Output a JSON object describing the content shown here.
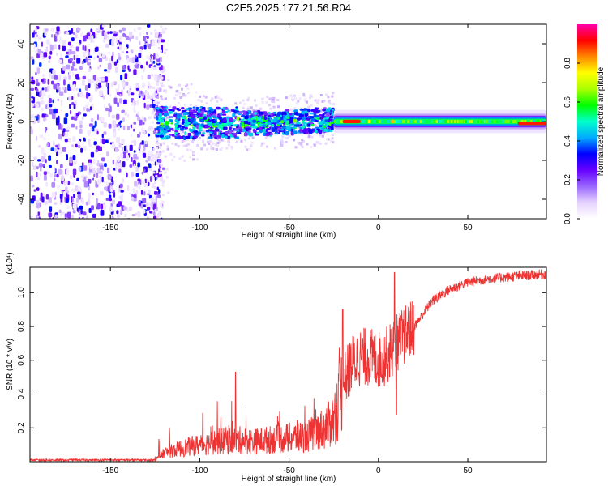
{
  "title": "C2E5.2025.177.21.56.R04",
  "chart_data": [
    {
      "type": "heatmap",
      "xlabel": "Height of straight line (km)",
      "ylabel": "Frequency (Hz)",
      "xlim": [
        -195,
        94
      ],
      "ylim": [
        -50,
        50
      ],
      "xticks": [
        -150,
        -100,
        -50,
        0,
        50
      ],
      "yticks": [
        -40,
        -20,
        0,
        20,
        40
      ],
      "colorbar": {
        "label": "Normalized spectral amplitude",
        "range": [
          0,
          1
        ],
        "ticks": [
          0.0,
          0.2,
          0.4,
          0.6,
          0.8
        ],
        "stops": [
          "#ffffff",
          "#e6d3ff",
          "#9966ff",
          "#6600ff",
          "#0000ff",
          "#00aaff",
          "#00ffcc",
          "#00ff00",
          "#aaff00",
          "#ffff00",
          "#ff8800",
          "#ff0000",
          "#ff00aa"
        ]
      },
      "regions": [
        {
          "x": [
            -195,
            -125
          ],
          "freq_range": [
            -50,
            50
          ],
          "amplitude": 0.15
        },
        {
          "x": [
            -125,
            -25
          ],
          "freq_center": 0,
          "freq_halfwidth": 8,
          "amplitude": 0.3
        },
        {
          "x": [
            -25,
            94
          ],
          "freq_center": 0,
          "freq_halfwidth": 2,
          "amplitude": 0.55
        },
        {
          "x": [
            -20,
            -10
          ],
          "freq_center": 0,
          "amplitude": 0.9
        },
        {
          "x": [
            78,
            94
          ],
          "freq_center": -1,
          "amplitude": 0.9
        }
      ],
      "grid": false
    },
    {
      "type": "line",
      "xlabel": "Height of straight line (km)",
      "ylabel": "SNR (10 * v/v)",
      "y_multiplier": "(x10⁴)",
      "xlim": [
        -195,
        94
      ],
      "ylim": [
        0,
        1.15
      ],
      "xticks": [
        -150,
        -100,
        -50,
        0,
        50
      ],
      "yticks": [
        0.2,
        0.4,
        0.6,
        0.8,
        1.0
      ],
      "color": "#ef3333",
      "envelope": {
        "x": [
          -195,
          -125,
          -120,
          -110,
          -100,
          -90,
          -80,
          -70,
          -60,
          -50,
          -40,
          -30,
          -25,
          -20,
          -15,
          -10,
          -5,
          0,
          5,
          10,
          15,
          20,
          30,
          40,
          50,
          60,
          70,
          80,
          94
        ],
        "y": [
          0.01,
          0.01,
          0.05,
          0.08,
          0.1,
          0.12,
          0.13,
          0.12,
          0.13,
          0.14,
          0.15,
          0.2,
          0.25,
          0.45,
          0.58,
          0.62,
          0.62,
          0.6,
          0.63,
          0.7,
          0.75,
          0.8,
          0.95,
          1.02,
          1.06,
          1.08,
          1.09,
          1.1,
          1.11
        ]
      },
      "spikes": [
        {
          "x": -80,
          "y": 0.53
        },
        {
          "x": -20,
          "y": 0.9
        },
        {
          "x": 9,
          "y": 1.12
        },
        {
          "x": 10,
          "y": 0.28
        }
      ],
      "grid": false
    }
  ]
}
